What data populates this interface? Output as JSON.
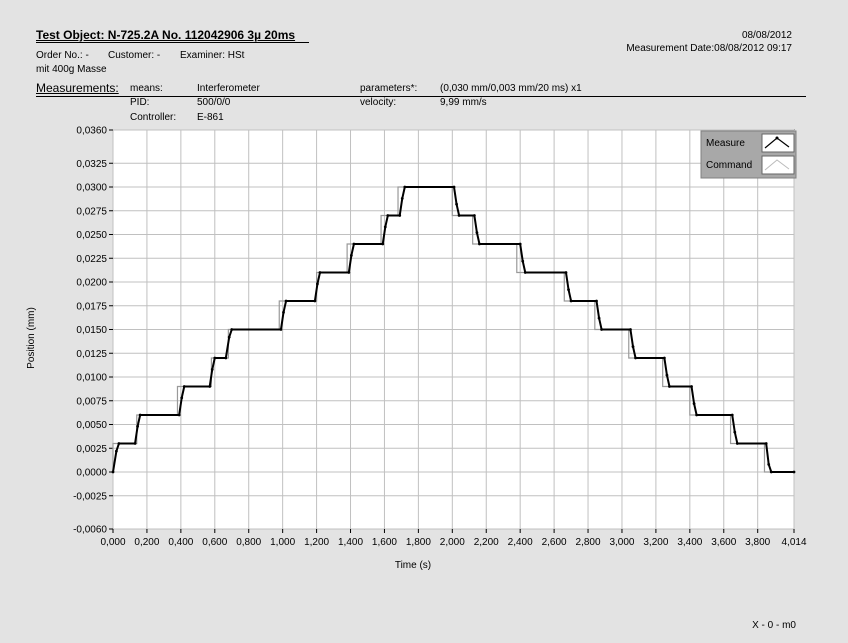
{
  "header": {
    "title": "Test Object: N-725.2A No. 112042906  3µ  20ms",
    "order_no": "Order No.: -",
    "customer": "Customer: -",
    "examiner": "Examiner: HSt",
    "remark": "mit 400g Masse",
    "date": "08/08/2012",
    "measurement_date": "Measurement Date:08/08/2012 09:17"
  },
  "measurements": {
    "heading": "Measurements:",
    "means_label": "means:",
    "means_value": "Interferometer",
    "pid_label": "PID:",
    "pid_value": "500/0/0",
    "controller_label": "Controller:",
    "controller_value": "E-861",
    "parameters_label": "parameters*:",
    "parameters_value": "(0,030 mm/0,003 mm/20 ms) x1",
    "velocity_label": "velocity:",
    "velocity_value": "9,99 mm/s"
  },
  "footer": {
    "code": "X - 0 - m0"
  },
  "colors": {
    "measure": "#000000",
    "command": "#9a9a9a",
    "grid": "#c0c0c0",
    "plot_bg": "#ffffff",
    "page_bg": "#e3e3e3",
    "legend_bg": "#a8a8a8"
  },
  "chart_data": {
    "type": "line",
    "title": "",
    "xlabel": "Time (s)",
    "ylabel": "Position  (mm)",
    "xlim": [
      0,
      4.014
    ],
    "ylim": [
      -0.006,
      0.036
    ],
    "x_ticks": [
      "0,000",
      "0,200",
      "0,400",
      "0,600",
      "0,800",
      "1,000",
      "1,200",
      "1,400",
      "1,600",
      "1,800",
      "2,000",
      "2,200",
      "2,400",
      "2,600",
      "2,800",
      "3,000",
      "3,200",
      "3,400",
      "3,600",
      "3,800",
      "4,014"
    ],
    "x_tick_values": [
      0,
      0.2,
      0.4,
      0.6,
      0.8,
      1.0,
      1.2,
      1.4,
      1.6,
      1.8,
      2.0,
      2.2,
      2.4,
      2.6,
      2.8,
      3.0,
      3.2,
      3.4,
      3.6,
      3.8,
      4.014
    ],
    "y_ticks": [
      "0,0360",
      "0,0325",
      "0,0300",
      "0,0275",
      "0,0250",
      "0,0225",
      "0,0200",
      "0,0175",
      "0,0150",
      "0,0125",
      "0,0100",
      "0,0075",
      "0,0050",
      "0,0025",
      "0,0000",
      "-0,0025",
      "-0,0060"
    ],
    "y_tick_values": [
      0.036,
      0.0325,
      0.03,
      0.0275,
      0.025,
      0.0225,
      0.02,
      0.0175,
      0.015,
      0.0125,
      0.01,
      0.0075,
      0.005,
      0.0025,
      0,
      -0.0025,
      -0.006
    ],
    "grid": true,
    "legend_position": "top-right",
    "series": [
      {
        "name": "Measure",
        "x": [
          0.0,
          0.02,
          0.035,
          0.13,
          0.145,
          0.16,
          0.39,
          0.405,
          0.42,
          0.57,
          0.585,
          0.6,
          0.665,
          0.685,
          0.7,
          0.99,
          1.005,
          1.02,
          1.19,
          1.205,
          1.22,
          1.39,
          1.405,
          1.42,
          1.59,
          1.605,
          1.62,
          1.69,
          1.705,
          1.72,
          2.01,
          2.025,
          2.04,
          2.13,
          2.145,
          2.16,
          2.4,
          2.415,
          2.43,
          2.67,
          2.685,
          2.7,
          2.85,
          2.865,
          2.88,
          3.05,
          3.065,
          3.08,
          3.25,
          3.265,
          3.28,
          3.41,
          3.425,
          3.44,
          3.65,
          3.665,
          3.68,
          3.85,
          3.865,
          3.88,
          4.014
        ],
        "y": [
          0.0,
          0.0022,
          0.003,
          0.003,
          0.0048,
          0.006,
          0.006,
          0.0078,
          0.009,
          0.009,
          0.0108,
          0.012,
          0.012,
          0.0142,
          0.015,
          0.015,
          0.0168,
          0.018,
          0.018,
          0.0198,
          0.021,
          0.021,
          0.0228,
          0.024,
          0.024,
          0.0258,
          0.027,
          0.027,
          0.0288,
          0.03,
          0.03,
          0.0282,
          0.027,
          0.027,
          0.0252,
          0.024,
          0.024,
          0.0222,
          0.021,
          0.021,
          0.0192,
          0.018,
          0.018,
          0.0162,
          0.015,
          0.015,
          0.0132,
          0.012,
          0.012,
          0.0102,
          0.009,
          0.009,
          0.0072,
          0.006,
          0.006,
          0.0042,
          0.003,
          0.003,
          0.0008,
          0.0,
          0.0
        ]
      },
      {
        "name": "Command",
        "x": [
          0.0,
          0.0,
          0.14,
          0.14,
          0.38,
          0.38,
          0.58,
          0.58,
          0.68,
          0.68,
          0.98,
          0.98,
          1.2,
          1.2,
          1.38,
          1.38,
          1.58,
          1.58,
          1.68,
          1.68,
          2.0,
          2.0,
          2.12,
          2.12,
          2.38,
          2.38,
          2.66,
          2.66,
          2.84,
          2.84,
          3.04,
          3.04,
          3.24,
          3.24,
          3.4,
          3.4,
          3.64,
          3.64,
          3.84,
          3.84,
          4.014
        ],
        "y": [
          0.0,
          0.003,
          0.003,
          0.006,
          0.006,
          0.009,
          0.009,
          0.012,
          0.012,
          0.015,
          0.015,
          0.018,
          0.018,
          0.021,
          0.021,
          0.024,
          0.024,
          0.027,
          0.027,
          0.03,
          0.03,
          0.027,
          0.027,
          0.024,
          0.024,
          0.021,
          0.021,
          0.018,
          0.018,
          0.015,
          0.015,
          0.012,
          0.012,
          0.009,
          0.009,
          0.006,
          0.006,
          0.003,
          0.003,
          0.0,
          0.0
        ]
      }
    ]
  }
}
